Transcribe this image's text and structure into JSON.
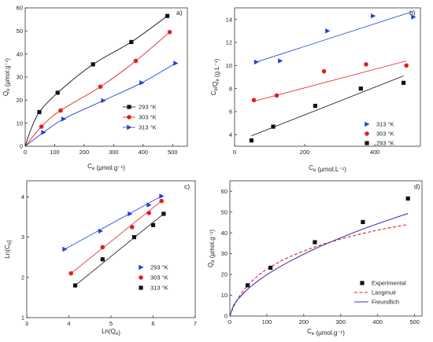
{
  "colors": {
    "black": "#111111",
    "red": "#e02020",
    "blue": "#2040e0",
    "blue_line": "#3a3ab0"
  },
  "chart_data": [
    {
      "panel": "a)",
      "type": "scatter",
      "xlabel": "Ce (μmol.g⁻¹)",
      "ylabel": "Qe (μmol.g⁻¹)",
      "xlim": [
        0,
        550
      ],
      "ylim": [
        0,
        60
      ],
      "xticks": [
        0,
        100,
        200,
        300,
        400,
        500
      ],
      "yticks": [
        0,
        10,
        20,
        30,
        40,
        50,
        60
      ],
      "legend_position": "bottom-right",
      "series": [
        {
          "name": "293 °K",
          "marker": "square",
          "color": "#111111",
          "x": [
            48,
            110,
            230,
            360,
            482
          ],
          "y": [
            14.8,
            23.2,
            35.5,
            45.2,
            56.5
          ]
        },
        {
          "name": "303 °K",
          "marker": "circle",
          "color": "#e02020",
          "x": [
            55,
            120,
            255,
            375,
            490
          ],
          "y": [
            8.5,
            15.5,
            25.8,
            37.0,
            49.5
          ]
        },
        {
          "name": "313 °K",
          "marker": "triangle",
          "color": "#2040e0",
          "x": [
            62,
            130,
            265,
            395,
            510
          ],
          "y": [
            6.0,
            11.8,
            19.8,
            27.5,
            36.0
          ]
        }
      ],
      "curves": [
        {
          "color": "#111111",
          "x": [
            0,
            20,
            48,
            110,
            230,
            360,
            482
          ],
          "y": [
            0,
            7.5,
            14.8,
            23.2,
            35.5,
            45.2,
            56.5
          ]
        },
        {
          "color": "#e02020",
          "x": [
            0,
            55,
            120,
            255,
            375,
            490
          ],
          "y": [
            0,
            8.5,
            15.5,
            25.8,
            37.0,
            49.5
          ]
        },
        {
          "color": "#2040e0",
          "x": [
            0,
            62,
            130,
            265,
            395,
            510
          ],
          "y": [
            0,
            6.0,
            11.8,
            19.8,
            27.5,
            36.0
          ]
        }
      ]
    },
    {
      "panel": "b)",
      "type": "scatter",
      "xlabel": "Ce (μmol.L⁻¹)",
      "ylabel": "Ce/Qe (g.L⁻¹)",
      "xlim": [
        0,
        530
      ],
      "ylim": [
        3,
        15
      ],
      "xticks": [
        0,
        200,
        400
      ],
      "yticks": [
        4,
        6,
        8,
        10,
        12,
        14
      ],
      "legend_position": "bottom-right",
      "series": [
        {
          "name": "313 °K",
          "marker": "triangle",
          "color": "#2040e0",
          "x": [
            62,
            130,
            265,
            395,
            510
          ],
          "y": [
            10.3,
            10.4,
            13.0,
            14.3,
            14.2
          ]
        },
        {
          "name": "303 °K",
          "marker": "circle",
          "color": "#e02020",
          "x": [
            55,
            120,
            255,
            375,
            490
          ],
          "y": [
            7.0,
            7.4,
            9.5,
            10.1,
            10.0
          ]
        },
        {
          "name": "293 °K",
          "marker": "square",
          "color": "#111111",
          "x": [
            48,
            110,
            230,
            360,
            482
          ],
          "y": [
            3.5,
            4.7,
            6.5,
            8.0,
            8.5
          ]
        }
      ],
      "fits": [
        {
          "color": "#111111",
          "x": [
            48,
            482
          ],
          "y": [
            3.9,
            9.1
          ]
        },
        {
          "color": "#e02020",
          "x": [
            55,
            490
          ],
          "y": [
            6.9,
            10.4
          ]
        },
        {
          "color": "#2040e0",
          "x": [
            62,
            510
          ],
          "y": [
            10.3,
            14.7
          ]
        }
      ]
    },
    {
      "panel": "c)",
      "type": "scatter",
      "xlabel": "Ln(Qe)",
      "ylabel": "Ln(Ce)",
      "xlim": [
        3,
        7
      ],
      "ylim": [
        1,
        4.4
      ],
      "xticks": [
        3,
        4,
        5,
        6,
        7
      ],
      "yticks": [
        1,
        2,
        3,
        4
      ],
      "legend_position": "bottom-right",
      "series": [
        {
          "name": "293 °K",
          "marker": "triangle",
          "color": "#2040e0",
          "x": [
            3.9,
            4.75,
            5.45,
            5.9,
            6.2
          ],
          "y": [
            2.7,
            3.15,
            3.58,
            3.8,
            4.02
          ]
        },
        {
          "name": "303 °K",
          "marker": "circle",
          "color": "#e02020",
          "x": [
            4.05,
            4.8,
            5.5,
            5.9,
            6.2
          ],
          "y": [
            2.1,
            2.75,
            3.25,
            3.6,
            3.9
          ]
        },
        {
          "name": "313 °K",
          "marker": "square",
          "color": "#111111",
          "x": [
            4.15,
            4.8,
            5.55,
            6.0,
            6.25
          ],
          "y": [
            1.8,
            2.45,
            3.0,
            3.3,
            3.58
          ]
        }
      ],
      "fits": [
        {
          "color": "#2040e0",
          "x": [
            3.9,
            6.2
          ],
          "y": [
            2.7,
            4.02
          ]
        },
        {
          "color": "#e02020",
          "x": [
            4.05,
            6.2
          ],
          "y": [
            2.1,
            3.9
          ]
        },
        {
          "color": "#111111",
          "x": [
            4.15,
            6.25
          ],
          "y": [
            1.8,
            3.58
          ]
        }
      ]
    },
    {
      "panel": "d)",
      "type": "scatter",
      "xlabel": "Ce (μmol.g⁻¹)",
      "ylabel": "Qe (μmol.g⁻¹)",
      "xlim": [
        0,
        520
      ],
      "ylim": [
        0,
        65
      ],
      "xticks": [
        0,
        100,
        200,
        300,
        400,
        500
      ],
      "yticks": [
        0,
        10,
        20,
        30,
        40,
        50,
        60
      ],
      "legend_position": "bottom-right",
      "series": [
        {
          "name": "Experimental",
          "marker": "square",
          "color": "#111111",
          "x": [
            48,
            110,
            230,
            360,
            482
          ],
          "y": [
            14.8,
            23.2,
            35.5,
            45.2,
            56.5
          ]
        }
      ],
      "lines": [
        {
          "name": "Langmuir",
          "style": "dashed",
          "color": "#e02020",
          "x": [
            0,
            10,
            25,
            50,
            80,
            110,
            160,
            230,
            300,
            360,
            420,
            482
          ],
          "y": [
            0,
            4.4,
            9.3,
            15.0,
            19.9,
            23.6,
            28.3,
            33.2,
            37.0,
            39.7,
            42.0,
            44.0
          ]
        },
        {
          "name": "Freundlich",
          "style": "solid",
          "color": "#3a3ab0",
          "x": [
            0,
            10,
            25,
            50,
            80,
            110,
            160,
            230,
            300,
            360,
            420,
            482
          ],
          "y": [
            0,
            5.1,
            8.7,
            13.2,
            17.4,
            21.0,
            26.1,
            32.3,
            37.6,
            41.8,
            45.6,
            49.3
          ]
        }
      ]
    }
  ]
}
